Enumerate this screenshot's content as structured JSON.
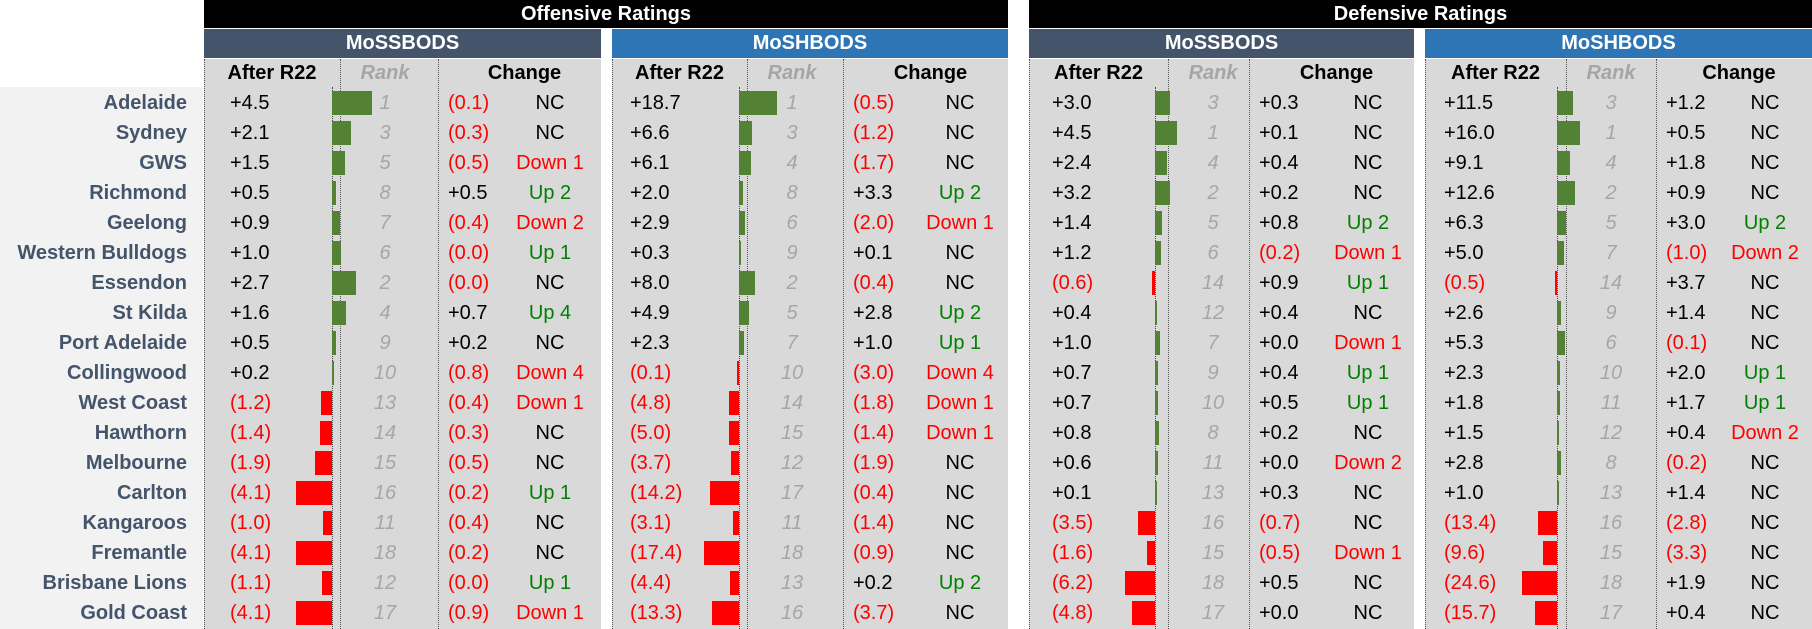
{
  "headers": {
    "offensive": "Offensive Ratings",
    "defensive": "Defensive Ratings",
    "mossbods": "MoSSBODS",
    "moshbods": "MoSHBODS",
    "after": "After R22",
    "rank": "Rank",
    "change": "Change"
  },
  "colors": {
    "mossbods_bar": "#44546a",
    "moshbods_bar": "#2e75b6",
    "positive_bar": "#548235",
    "negative_bar": "#ff0000",
    "up": "#008000",
    "down": "#ff0000"
  },
  "teams": [
    {
      "name": "Adelaide",
      "off_ss": {
        "val": "+4.5",
        "rank": "1",
        "chg": "(0.1)",
        "mv": "NC"
      },
      "off_sh": {
        "val": "+18.7",
        "rank": "1",
        "chg": "(0.5)",
        "mv": "NC"
      },
      "def_ss": {
        "val": "+3.0",
        "rank": "3",
        "chg": "+0.3",
        "mv": "NC"
      },
      "def_sh": {
        "val": "+11.5",
        "rank": "3",
        "chg": "+1.2",
        "mv": "NC"
      }
    },
    {
      "name": "Sydney",
      "off_ss": {
        "val": "+2.1",
        "rank": "3",
        "chg": "(0.3)",
        "mv": "NC"
      },
      "off_sh": {
        "val": "+6.6",
        "rank": "3",
        "chg": "(1.2)",
        "mv": "NC"
      },
      "def_ss": {
        "val": "+4.5",
        "rank": "1",
        "chg": "+0.1",
        "mv": "NC"
      },
      "def_sh": {
        "val": "+16.0",
        "rank": "1",
        "chg": "+0.5",
        "mv": "NC"
      }
    },
    {
      "name": "GWS",
      "off_ss": {
        "val": "+1.5",
        "rank": "5",
        "chg": "(0.5)",
        "mv": "Down 1"
      },
      "off_sh": {
        "val": "+6.1",
        "rank": "4",
        "chg": "(1.7)",
        "mv": "NC"
      },
      "def_ss": {
        "val": "+2.4",
        "rank": "4",
        "chg": "+0.4",
        "mv": "NC"
      },
      "def_sh": {
        "val": "+9.1",
        "rank": "4",
        "chg": "+1.8",
        "mv": "NC"
      }
    },
    {
      "name": "Richmond",
      "off_ss": {
        "val": "+0.5",
        "rank": "8",
        "chg": "+0.5",
        "mv": "Up 2"
      },
      "off_sh": {
        "val": "+2.0",
        "rank": "8",
        "chg": "+3.3",
        "mv": "Up 2"
      },
      "def_ss": {
        "val": "+3.2",
        "rank": "2",
        "chg": "+0.2",
        "mv": "NC"
      },
      "def_sh": {
        "val": "+12.6",
        "rank": "2",
        "chg": "+0.9",
        "mv": "NC"
      }
    },
    {
      "name": "Geelong",
      "off_ss": {
        "val": "+0.9",
        "rank": "7",
        "chg": "(0.4)",
        "mv": "Down 2"
      },
      "off_sh": {
        "val": "+2.9",
        "rank": "6",
        "chg": "(2.0)",
        "mv": "Down 1"
      },
      "def_ss": {
        "val": "+1.4",
        "rank": "5",
        "chg": "+0.8",
        "mv": "Up 2"
      },
      "def_sh": {
        "val": "+6.3",
        "rank": "5",
        "chg": "+3.0",
        "mv": "Up 2"
      }
    },
    {
      "name": "Western Bulldogs",
      "off_ss": {
        "val": "+1.0",
        "rank": "6",
        "chg": "(0.0)",
        "mv": "Up 1"
      },
      "off_sh": {
        "val": "+0.3",
        "rank": "9",
        "chg": "+0.1",
        "mv": "NC"
      },
      "def_ss": {
        "val": "+1.2",
        "rank": "6",
        "chg": "(0.2)",
        "mv": "Down 1"
      },
      "def_sh": {
        "val": "+5.0",
        "rank": "7",
        "chg": "(1.0)",
        "mv": "Down 2"
      }
    },
    {
      "name": "Essendon",
      "off_ss": {
        "val": "+2.7",
        "rank": "2",
        "chg": "(0.0)",
        "mv": "NC"
      },
      "off_sh": {
        "val": "+8.0",
        "rank": "2",
        "chg": "(0.4)",
        "mv": "NC"
      },
      "def_ss": {
        "val": "(0.6)",
        "rank": "14",
        "chg": "+0.9",
        "mv": "Up 1"
      },
      "def_sh": {
        "val": "(0.5)",
        "rank": "14",
        "chg": "+3.7",
        "mv": "NC"
      }
    },
    {
      "name": "St Kilda",
      "off_ss": {
        "val": "+1.6",
        "rank": "4",
        "chg": "+0.7",
        "mv": "Up 4"
      },
      "off_sh": {
        "val": "+4.9",
        "rank": "5",
        "chg": "+2.8",
        "mv": "Up 2"
      },
      "def_ss": {
        "val": "+0.4",
        "rank": "12",
        "chg": "+0.4",
        "mv": "NC"
      },
      "def_sh": {
        "val": "+2.6",
        "rank": "9",
        "chg": "+1.4",
        "mv": "NC"
      }
    },
    {
      "name": "Port Adelaide",
      "off_ss": {
        "val": "+0.5",
        "rank": "9",
        "chg": "+0.2",
        "mv": "NC"
      },
      "off_sh": {
        "val": "+2.3",
        "rank": "7",
        "chg": "+1.0",
        "mv": "Up 1"
      },
      "def_ss": {
        "val": "+1.0",
        "rank": "7",
        "chg": "+0.0",
        "mv": "Down 1"
      },
      "def_sh": {
        "val": "+5.3",
        "rank": "6",
        "chg": "(0.1)",
        "mv": "NC"
      }
    },
    {
      "name": "Collingwood",
      "off_ss": {
        "val": "+0.2",
        "rank": "10",
        "chg": "(0.8)",
        "mv": "Down 4"
      },
      "off_sh": {
        "val": "(0.1)",
        "rank": "10",
        "chg": "(3.0)",
        "mv": "Down 4"
      },
      "def_ss": {
        "val": "+0.7",
        "rank": "9",
        "chg": "+0.4",
        "mv": "Up 1"
      },
      "def_sh": {
        "val": "+2.3",
        "rank": "10",
        "chg": "+2.0",
        "mv": "Up 1"
      }
    },
    {
      "name": "West Coast",
      "off_ss": {
        "val": "(1.2)",
        "rank": "13",
        "chg": "(0.4)",
        "mv": "Down 1"
      },
      "off_sh": {
        "val": "(4.8)",
        "rank": "14",
        "chg": "(1.8)",
        "mv": "Down 1"
      },
      "def_ss": {
        "val": "+0.7",
        "rank": "10",
        "chg": "+0.5",
        "mv": "Up 1"
      },
      "def_sh": {
        "val": "+1.8",
        "rank": "11",
        "chg": "+1.7",
        "mv": "Up 1"
      }
    },
    {
      "name": "Hawthorn",
      "off_ss": {
        "val": "(1.4)",
        "rank": "14",
        "chg": "(0.3)",
        "mv": "NC"
      },
      "off_sh": {
        "val": "(5.0)",
        "rank": "15",
        "chg": "(1.4)",
        "mv": "Down 1"
      },
      "def_ss": {
        "val": "+0.8",
        "rank": "8",
        "chg": "+0.2",
        "mv": "NC"
      },
      "def_sh": {
        "val": "+1.5",
        "rank": "12",
        "chg": "+0.4",
        "mv": "Down 2"
      }
    },
    {
      "name": "Melbourne",
      "off_ss": {
        "val": "(1.9)",
        "rank": "15",
        "chg": "(0.5)",
        "mv": "NC"
      },
      "off_sh": {
        "val": "(3.7)",
        "rank": "12",
        "chg": "(1.9)",
        "mv": "NC"
      },
      "def_ss": {
        "val": "+0.6",
        "rank": "11",
        "chg": "+0.0",
        "mv": "Down 2"
      },
      "def_sh": {
        "val": "+2.8",
        "rank": "8",
        "chg": "(0.2)",
        "mv": "NC"
      }
    },
    {
      "name": "Carlton",
      "off_ss": {
        "val": "(4.1)",
        "rank": "16",
        "chg": "(0.2)",
        "mv": "Up 1"
      },
      "off_sh": {
        "val": "(14.2)",
        "rank": "17",
        "chg": "(0.4)",
        "mv": "NC"
      },
      "def_ss": {
        "val": "+0.1",
        "rank": "13",
        "chg": "+0.3",
        "mv": "NC"
      },
      "def_sh": {
        "val": "+1.0",
        "rank": "13",
        "chg": "+1.4",
        "mv": "NC"
      }
    },
    {
      "name": "Kangaroos",
      "off_ss": {
        "val": "(1.0)",
        "rank": "11",
        "chg": "(0.4)",
        "mv": "NC"
      },
      "off_sh": {
        "val": "(3.1)",
        "rank": "11",
        "chg": "(1.4)",
        "mv": "NC"
      },
      "def_ss": {
        "val": "(3.5)",
        "rank": "16",
        "chg": "(0.7)",
        "mv": "NC"
      },
      "def_sh": {
        "val": "(13.4)",
        "rank": "16",
        "chg": "(2.8)",
        "mv": "NC"
      }
    },
    {
      "name": "Fremantle",
      "off_ss": {
        "val": "(4.1)",
        "rank": "18",
        "chg": "(0.2)",
        "mv": "NC"
      },
      "off_sh": {
        "val": "(17.4)",
        "rank": "18",
        "chg": "(0.9)",
        "mv": "NC"
      },
      "def_ss": {
        "val": "(1.6)",
        "rank": "15",
        "chg": "(0.5)",
        "mv": "Down 1"
      },
      "def_sh": {
        "val": "(9.6)",
        "rank": "15",
        "chg": "(3.3)",
        "mv": "NC"
      }
    },
    {
      "name": "Brisbane Lions",
      "off_ss": {
        "val": "(1.1)",
        "rank": "12",
        "chg": "(0.0)",
        "mv": "Up 1"
      },
      "off_sh": {
        "val": "(4.4)",
        "rank": "13",
        "chg": "+0.2",
        "mv": "Up 2"
      },
      "def_ss": {
        "val": "(6.2)",
        "rank": "18",
        "chg": "+0.5",
        "mv": "NC"
      },
      "def_sh": {
        "val": "(24.6)",
        "rank": "18",
        "chg": "+1.9",
        "mv": "NC"
      }
    },
    {
      "name": "Gold Coast",
      "off_ss": {
        "val": "(4.1)",
        "rank": "17",
        "chg": "(0.9)",
        "mv": "Down 1"
      },
      "off_sh": {
        "val": "(13.3)",
        "rank": "16",
        "chg": "(3.7)",
        "mv": "NC"
      },
      "def_ss": {
        "val": "(4.8)",
        "rank": "17",
        "chg": "+0.0",
        "mv": "NC"
      },
      "def_sh": {
        "val": "(15.7)",
        "rank": "17",
        "chg": "+0.4",
        "mv": "NC"
      }
    }
  ]
}
